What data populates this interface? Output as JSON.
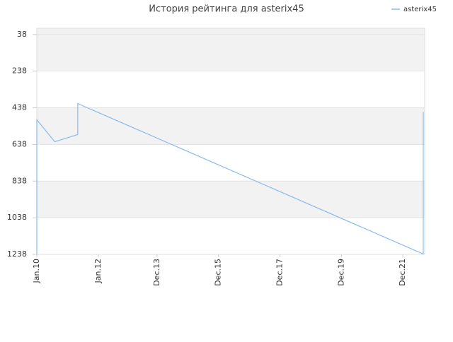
{
  "chart_data": {
    "type": "line",
    "title": "История рейтинга для asterix45",
    "x": [
      "2010-01",
      "2010-01",
      "2010-08",
      "2011-05",
      "2011-05",
      "2022-08",
      "2022-08"
    ],
    "series": [
      {
        "name": "asterix45",
        "color": "#88bbee",
        "values": [
          1238,
          503,
          623,
          584,
          415,
          1236,
          461
        ]
      }
    ],
    "xlim": [
      "2010-01",
      "2022-08"
    ],
    "xticks": [
      {
        "value": "2010-01",
        "label": "Jan.10"
      },
      {
        "value": "2012-01",
        "label": "Jan.12"
      },
      {
        "value": "2013-12",
        "label": "Dec.13"
      },
      {
        "value": "2015-12",
        "label": "Dec.15"
      },
      {
        "value": "2017-12",
        "label": "Dec.17"
      },
      {
        "value": "2019-12",
        "label": "Dec.19"
      },
      {
        "value": "2021-12",
        "label": "Dec.21"
      }
    ],
    "ylim": [
      1238,
      4
    ],
    "yticks": [
      38,
      238,
      438,
      638,
      838,
      1038,
      1238
    ],
    "grid": true,
    "legend": "top-right"
  }
}
